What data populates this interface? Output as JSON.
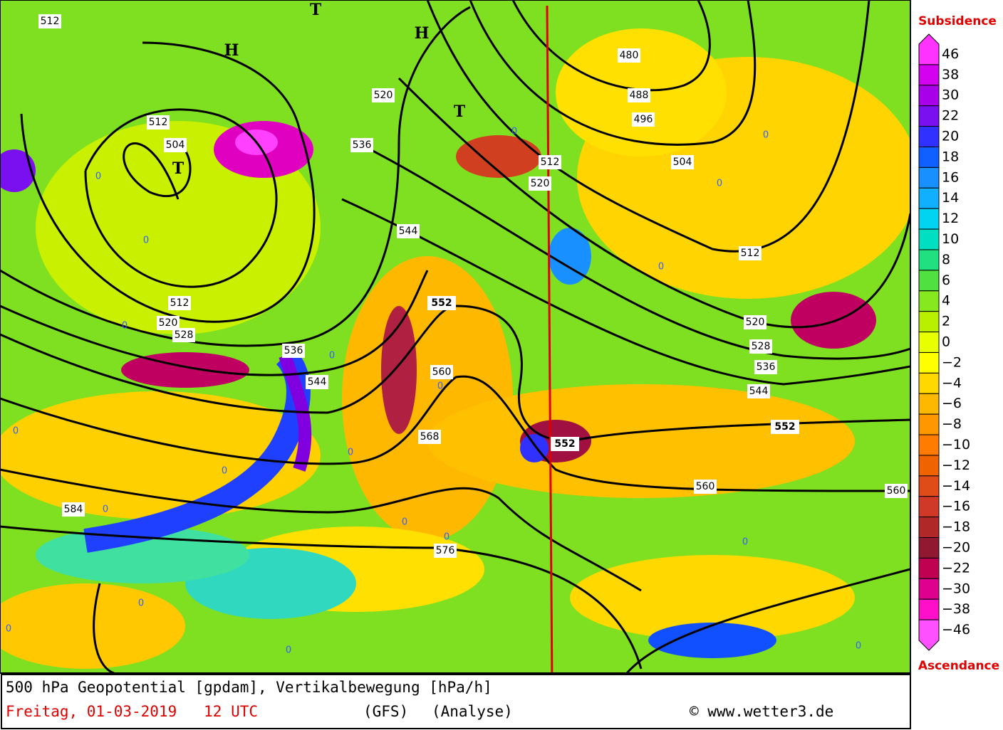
{
  "map": {
    "contour_labels": [
      "512",
      "512",
      "504",
      "512",
      "520",
      "528",
      "536",
      "544",
      "544",
      "536",
      "520",
      "552",
      "560",
      "568",
      "576",
      "584",
      "480",
      "488",
      "496",
      "504",
      "512",
      "520",
      "512",
      "520",
      "528",
      "536",
      "544",
      "552",
      "552",
      "560",
      "560"
    ],
    "pressure_markers": [
      "T",
      "T",
      "T",
      "H",
      "H"
    ],
    "zero_labels": [
      "0",
      "0",
      "0",
      "0",
      "0",
      "0",
      "0",
      "0",
      "0",
      "0",
      "0",
      "0",
      "0",
      "0",
      "0",
      "0",
      "0",
      "0",
      "0",
      "0"
    ]
  },
  "legend": {
    "title_top": "Subsidence",
    "title_bottom": "Ascendance",
    "levels": [
      {
        "label": "46",
        "color": "#ff33ff"
      },
      {
        "label": "38",
        "color": "#d400f0"
      },
      {
        "label": "30",
        "color": "#a800e8"
      },
      {
        "label": "22",
        "color": "#7a10f0"
      },
      {
        "label": "20",
        "color": "#3030ff"
      },
      {
        "label": "18",
        "color": "#1060ff"
      },
      {
        "label": "16",
        "color": "#1890ff"
      },
      {
        "label": "14",
        "color": "#10b0ff"
      },
      {
        "label": "12",
        "color": "#00d4f0"
      },
      {
        "label": "10",
        "color": "#00e0c0"
      },
      {
        "label": "8",
        "color": "#20e080"
      },
      {
        "label": "6",
        "color": "#50e040"
      },
      {
        "label": "4",
        "color": "#88e820"
      },
      {
        "label": "2",
        "color": "#b8f000"
      },
      {
        "label": "0",
        "color": "#e8ff00"
      },
      {
        "label": "−2",
        "color": "#ffff00"
      },
      {
        "label": "−4",
        "color": "#ffd800"
      },
      {
        "label": "−6",
        "color": "#ffb800"
      },
      {
        "label": "−8",
        "color": "#ff9800"
      },
      {
        "label": "−10",
        "color": "#ff7c00"
      },
      {
        "label": "−12",
        "color": "#f06400"
      },
      {
        "label": "−14",
        "color": "#e04c18"
      },
      {
        "label": "−16",
        "color": "#d03828"
      },
      {
        "label": "−18",
        "color": "#b02828"
      },
      {
        "label": "−20",
        "color": "#901830"
      },
      {
        "label": "−22",
        "color": "#c00050"
      },
      {
        "label": "−30",
        "color": "#e00090"
      },
      {
        "label": "−38",
        "color": "#ff10c8"
      },
      {
        "label": "−46",
        "color": "#ff50ff"
      }
    ]
  },
  "footer": {
    "title": "500 hPa Geopotential [gpdam], Vertikalbewegung [hPa/h]",
    "date": "Freitag, 01-03-2019   12 UTC",
    "model": "(GFS)",
    "run": "(Analyse)",
    "credit": "© www.wetter3.de"
  }
}
